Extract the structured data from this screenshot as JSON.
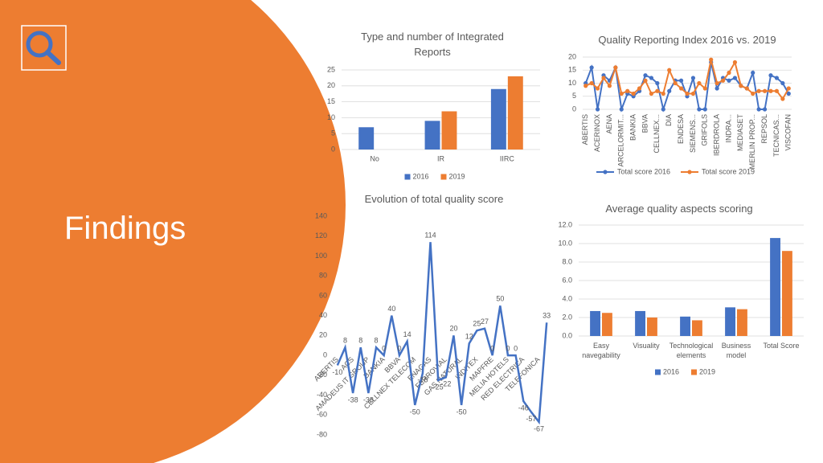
{
  "slide": {
    "heading": "Findings"
  },
  "chart_data": [
    {
      "type": "bar",
      "title": "Type and number of Integrated Reports",
      "categories": [
        "No",
        "IR",
        "IIRC"
      ],
      "series": [
        {
          "name": "2016",
          "color": "#4472c4",
          "values": [
            7,
            9,
            19
          ]
        },
        {
          "name": "2019",
          "color": "#ed7d31",
          "values": [
            0,
            12,
            23
          ]
        }
      ],
      "ylim": [
        0,
        25
      ],
      "yticks": [
        0,
        5,
        10,
        15,
        20,
        25
      ],
      "grid": true,
      "legend": "bottom"
    },
    {
      "type": "line",
      "title": "Quality Reporting Index 2016 vs. 2019",
      "categories": [
        "ABERTIS",
        null,
        "ACERINOX",
        null,
        "AENA",
        null,
        "ARCELORMIT...",
        null,
        "BANKIA",
        null,
        "BBVA",
        null,
        "CELLNEX...",
        null,
        "DIA",
        null,
        "ENDESA",
        null,
        "SIEMENS...",
        null,
        "GRIFOLS",
        null,
        "IBERDROLA",
        null,
        "INDRA...",
        null,
        "MEDIASET",
        null,
        "MERLIN PROP...",
        null,
        "REPSOL",
        null,
        "TECNICAS...",
        null,
        "VISCOFAN"
      ],
      "series": [
        {
          "name": "Total score 2016",
          "color": "#4472c4",
          "values": [
            10,
            16,
            0,
            13,
            11,
            16,
            0,
            6,
            5,
            7,
            13,
            12,
            10,
            0,
            7,
            11,
            11,
            5,
            12,
            0,
            0,
            18,
            8,
            12,
            11,
            12,
            9,
            8,
            14,
            0,
            0,
            13,
            12,
            10,
            6
          ]
        },
        {
          "name": "Total score 2019",
          "color": "#ed7d31",
          "values": [
            9,
            10,
            8,
            12,
            9,
            16,
            6,
            7,
            6,
            8,
            11,
            6,
            7,
            6,
            15,
            10,
            8,
            6,
            6,
            10,
            8,
            19,
            10,
            11,
            14,
            18,
            9,
            8,
            6,
            7,
            7,
            7,
            7,
            4,
            8
          ]
        }
      ],
      "ylim": [
        0,
        20
      ],
      "yticks": [
        0,
        5,
        10,
        15,
        20
      ],
      "grid": true,
      "markers": true,
      "legend": "bottom"
    },
    {
      "type": "line",
      "title": "Evolution of total quality score",
      "categories": [
        "ABERTIS",
        null,
        "ACS",
        null,
        "AMADEUS IT GROUP",
        null,
        "BANKIA",
        null,
        "BBVA",
        null,
        "CELLNEX TELECOM",
        null,
        "ENAGAS",
        null,
        "FERROVIAL",
        null,
        "GAS NATURAL",
        null,
        "INDITEX",
        null,
        "MAPFRE",
        null,
        "MELIA HOTELS",
        null,
        "RED ELECTRICA",
        null,
        "TELEFONICA",
        null
      ],
      "series": [
        {
          "color": "#4472c4",
          "values": [
            -10,
            8,
            -38,
            8,
            -38,
            8,
            0,
            40,
            0,
            14,
            -50,
            -18,
            114,
            -25,
            -22,
            20,
            -50,
            12,
            25,
            27,
            0,
            50,
            0,
            0,
            -46,
            -57,
            -67,
            33
          ]
        }
      ],
      "ylim": [
        -80,
        140
      ],
      "yticks": [
        -80,
        -60,
        -40,
        -20,
        0,
        20,
        40,
        60,
        80,
        100,
        120,
        140
      ],
      "grid": false,
      "data_labels": true
    },
    {
      "type": "bar",
      "title": "Average quality aspects scoring",
      "categories": [
        "Easy navegability",
        "Visuality",
        "Technological elements",
        "Business model",
        "Total Score"
      ],
      "series": [
        {
          "name": "2016",
          "color": "#4472c4",
          "values": [
            2.7,
            2.7,
            2.1,
            3.1,
            10.6
          ]
        },
        {
          "name": "2019",
          "color": "#ed7d31",
          "values": [
            2.5,
            2.0,
            1.7,
            2.9,
            9.2
          ]
        }
      ],
      "ylim": [
        0,
        12
      ],
      "yticks": [
        {
          "value": 0,
          "label": "0.0"
        },
        {
          "value": 2,
          "label": "2.0"
        },
        {
          "value": 4,
          "label": "4.0"
        },
        {
          "value": 6,
          "label": "6.0"
        },
        {
          "value": 8,
          "label": "8.0"
        },
        {
          "value": 10,
          "label": "10.0"
        },
        {
          "value": 12,
          "label": "12.0"
        }
      ],
      "grid": true,
      "legend": "bottom"
    }
  ]
}
